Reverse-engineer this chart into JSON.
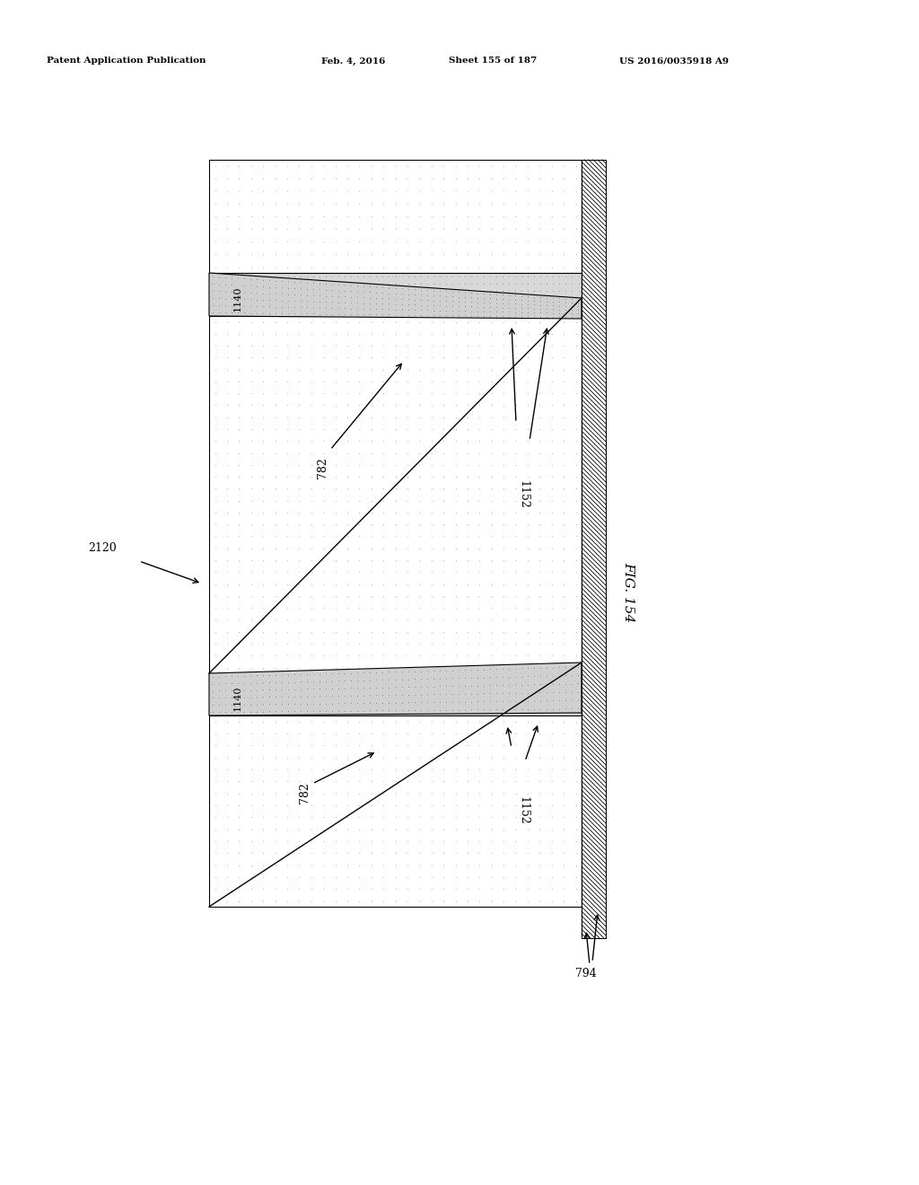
{
  "header_text": "Patent Application Publication",
  "header_date": "Feb. 4, 2016",
  "header_sheet": "Sheet 155 of 187",
  "header_patent": "US 2016/0035918 A9",
  "fig_label": "FIG. 154",
  "label_2120": "2120",
  "label_794": "794",
  "label_1140_1": "1140",
  "label_1140_2": "1140",
  "label_782_1": "782",
  "label_782_2": "782",
  "label_1152_1": "1152",
  "label_1152_2": "1152",
  "bg_color": "#ffffff"
}
